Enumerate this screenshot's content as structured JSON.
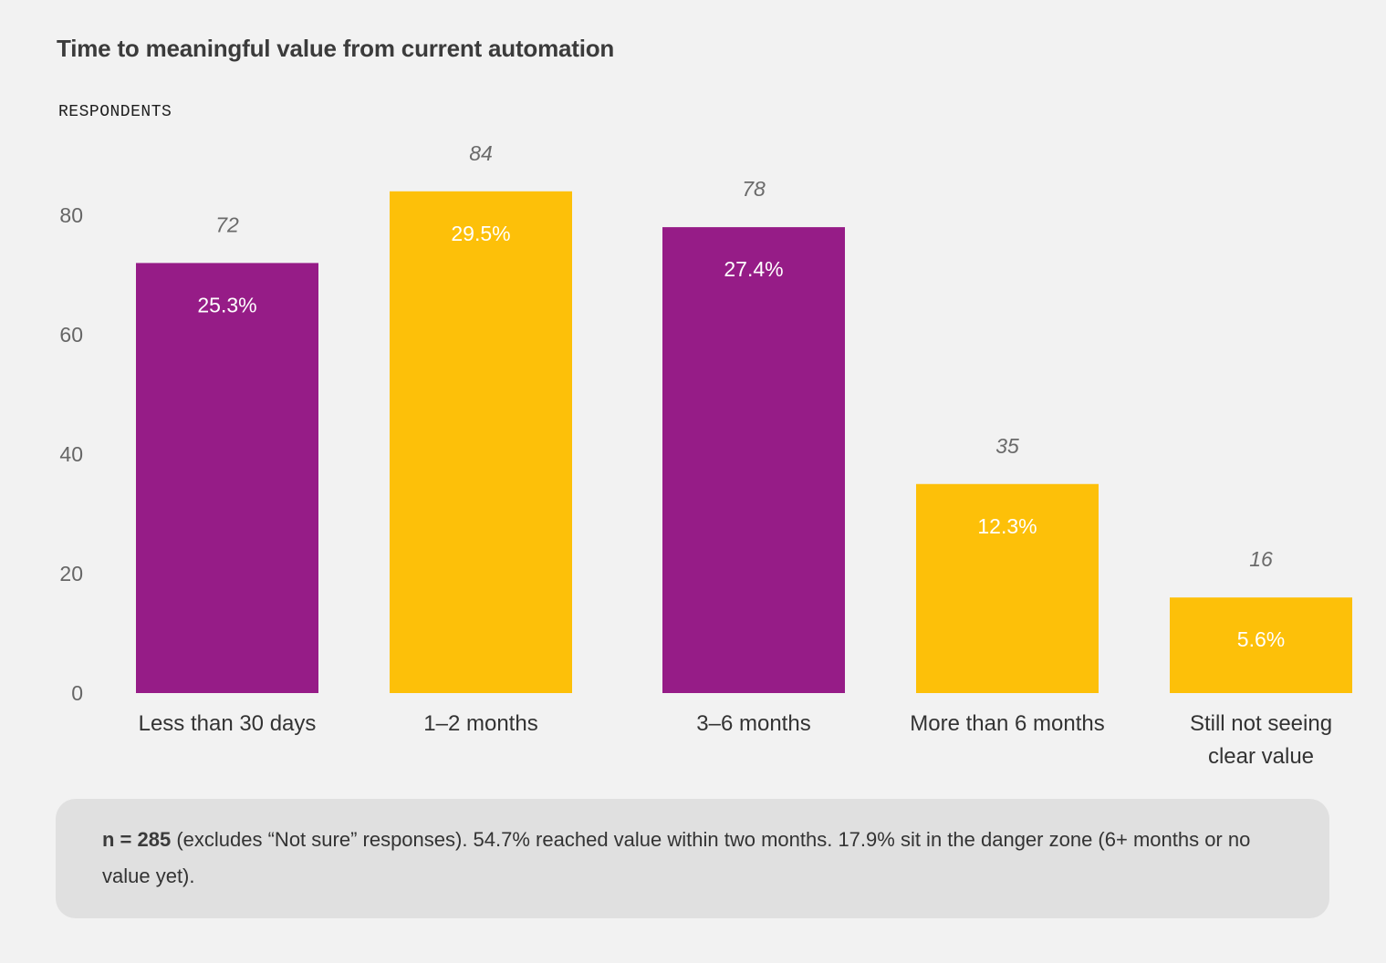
{
  "colors": {
    "purple": "#961c87",
    "yellow": "#fdc009",
    "axis_text": "#666666",
    "value_text": "#6a6a6a",
    "category_text": "#333333",
    "pct_text": "#ffffff"
  },
  "chart_data": {
    "type": "bar",
    "title": "Time to meaningful value from current automation",
    "ylabel": "RESPONDENTS",
    "xlabel": "",
    "ylim": [
      0,
      80
    ],
    "yticks": [
      0,
      20,
      40,
      60,
      80
    ],
    "grid": false,
    "categories": [
      [
        "Less than 30 days"
      ],
      [
        "1–2 months"
      ],
      [
        "3–6 months"
      ],
      [
        "More than 6 months"
      ],
      [
        "Still not seeing",
        "clear value"
      ]
    ],
    "values": [
      72,
      84,
      78,
      35,
      16
    ],
    "value_labels": [
      "72",
      "84",
      "78",
      "35",
      "16"
    ],
    "percent_labels": [
      "25.3%",
      "29.5%",
      "27.4%",
      "12.3%",
      "5.6%"
    ],
    "bar_colors": [
      "purple",
      "yellow",
      "purple",
      "yellow",
      "yellow"
    ]
  },
  "note": {
    "bold": "n = 285",
    "text": " (excludes “Not sure” responses). 54.7% reached value within two months. 17.9% sit in the danger zone (6+ months or no value yet)."
  }
}
